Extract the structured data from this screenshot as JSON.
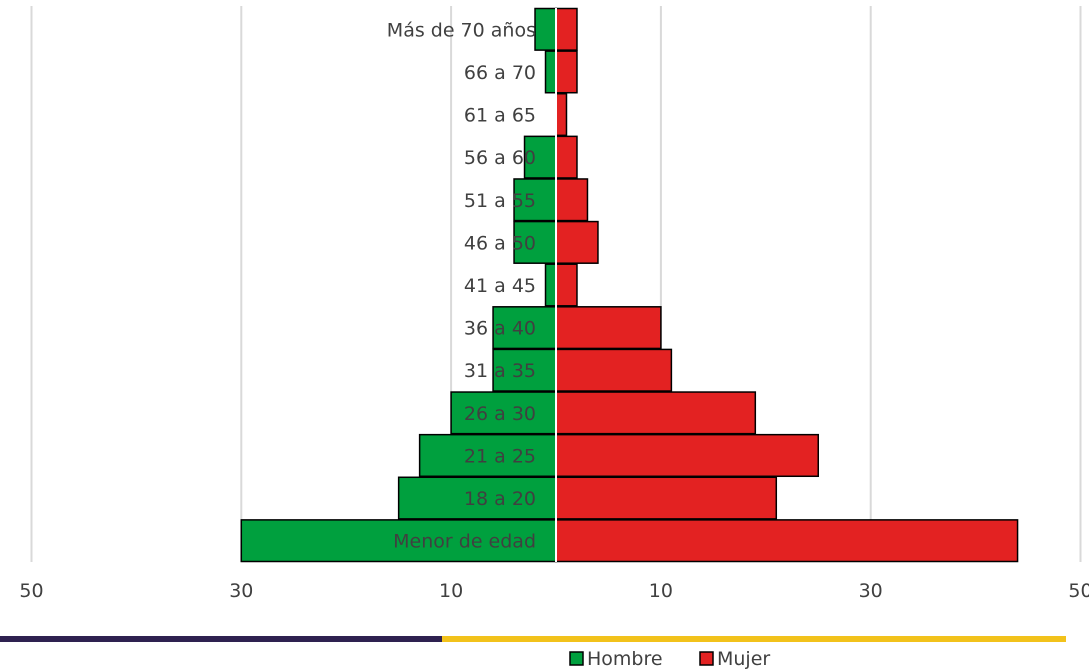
{
  "chart_data": {
    "type": "bar",
    "orientation": "horizontal",
    "layout": "population-pyramid",
    "categories": [
      "Menor de edad",
      "18 a 20",
      "21 a 25",
      "26 a 30",
      "31 a 35",
      "36 a 40",
      "41 a 45",
      "46 a 50",
      "51 a 55",
      "56 a 60",
      "61 a 65",
      "66 a 70",
      "Más de 70 años"
    ],
    "series": [
      {
        "name": "Hombre",
        "color": "#00a03e",
        "side": "left",
        "values": [
          30,
          15,
          13,
          10,
          6,
          6,
          1,
          4,
          4,
          3,
          0,
          1,
          2
        ]
      },
      {
        "name": "Mujer",
        "color": "#e32222",
        "side": "right",
        "values": [
          44,
          21,
          25,
          19,
          11,
          10,
          2,
          4,
          3,
          2,
          1,
          2,
          2
        ]
      }
    ],
    "xlim": [
      -50,
      50
    ],
    "x_ticks": [
      -50,
      -30,
      -10,
      10,
      30,
      50
    ],
    "x_tick_labels": [
      "50",
      "30",
      "10",
      "10",
      "30",
      "50"
    ],
    "grid": "vertical",
    "legend": "bottom-center",
    "decor_colors": {
      "bar_left": "#2e2150",
      "bar_right": "#f2c21b"
    }
  }
}
